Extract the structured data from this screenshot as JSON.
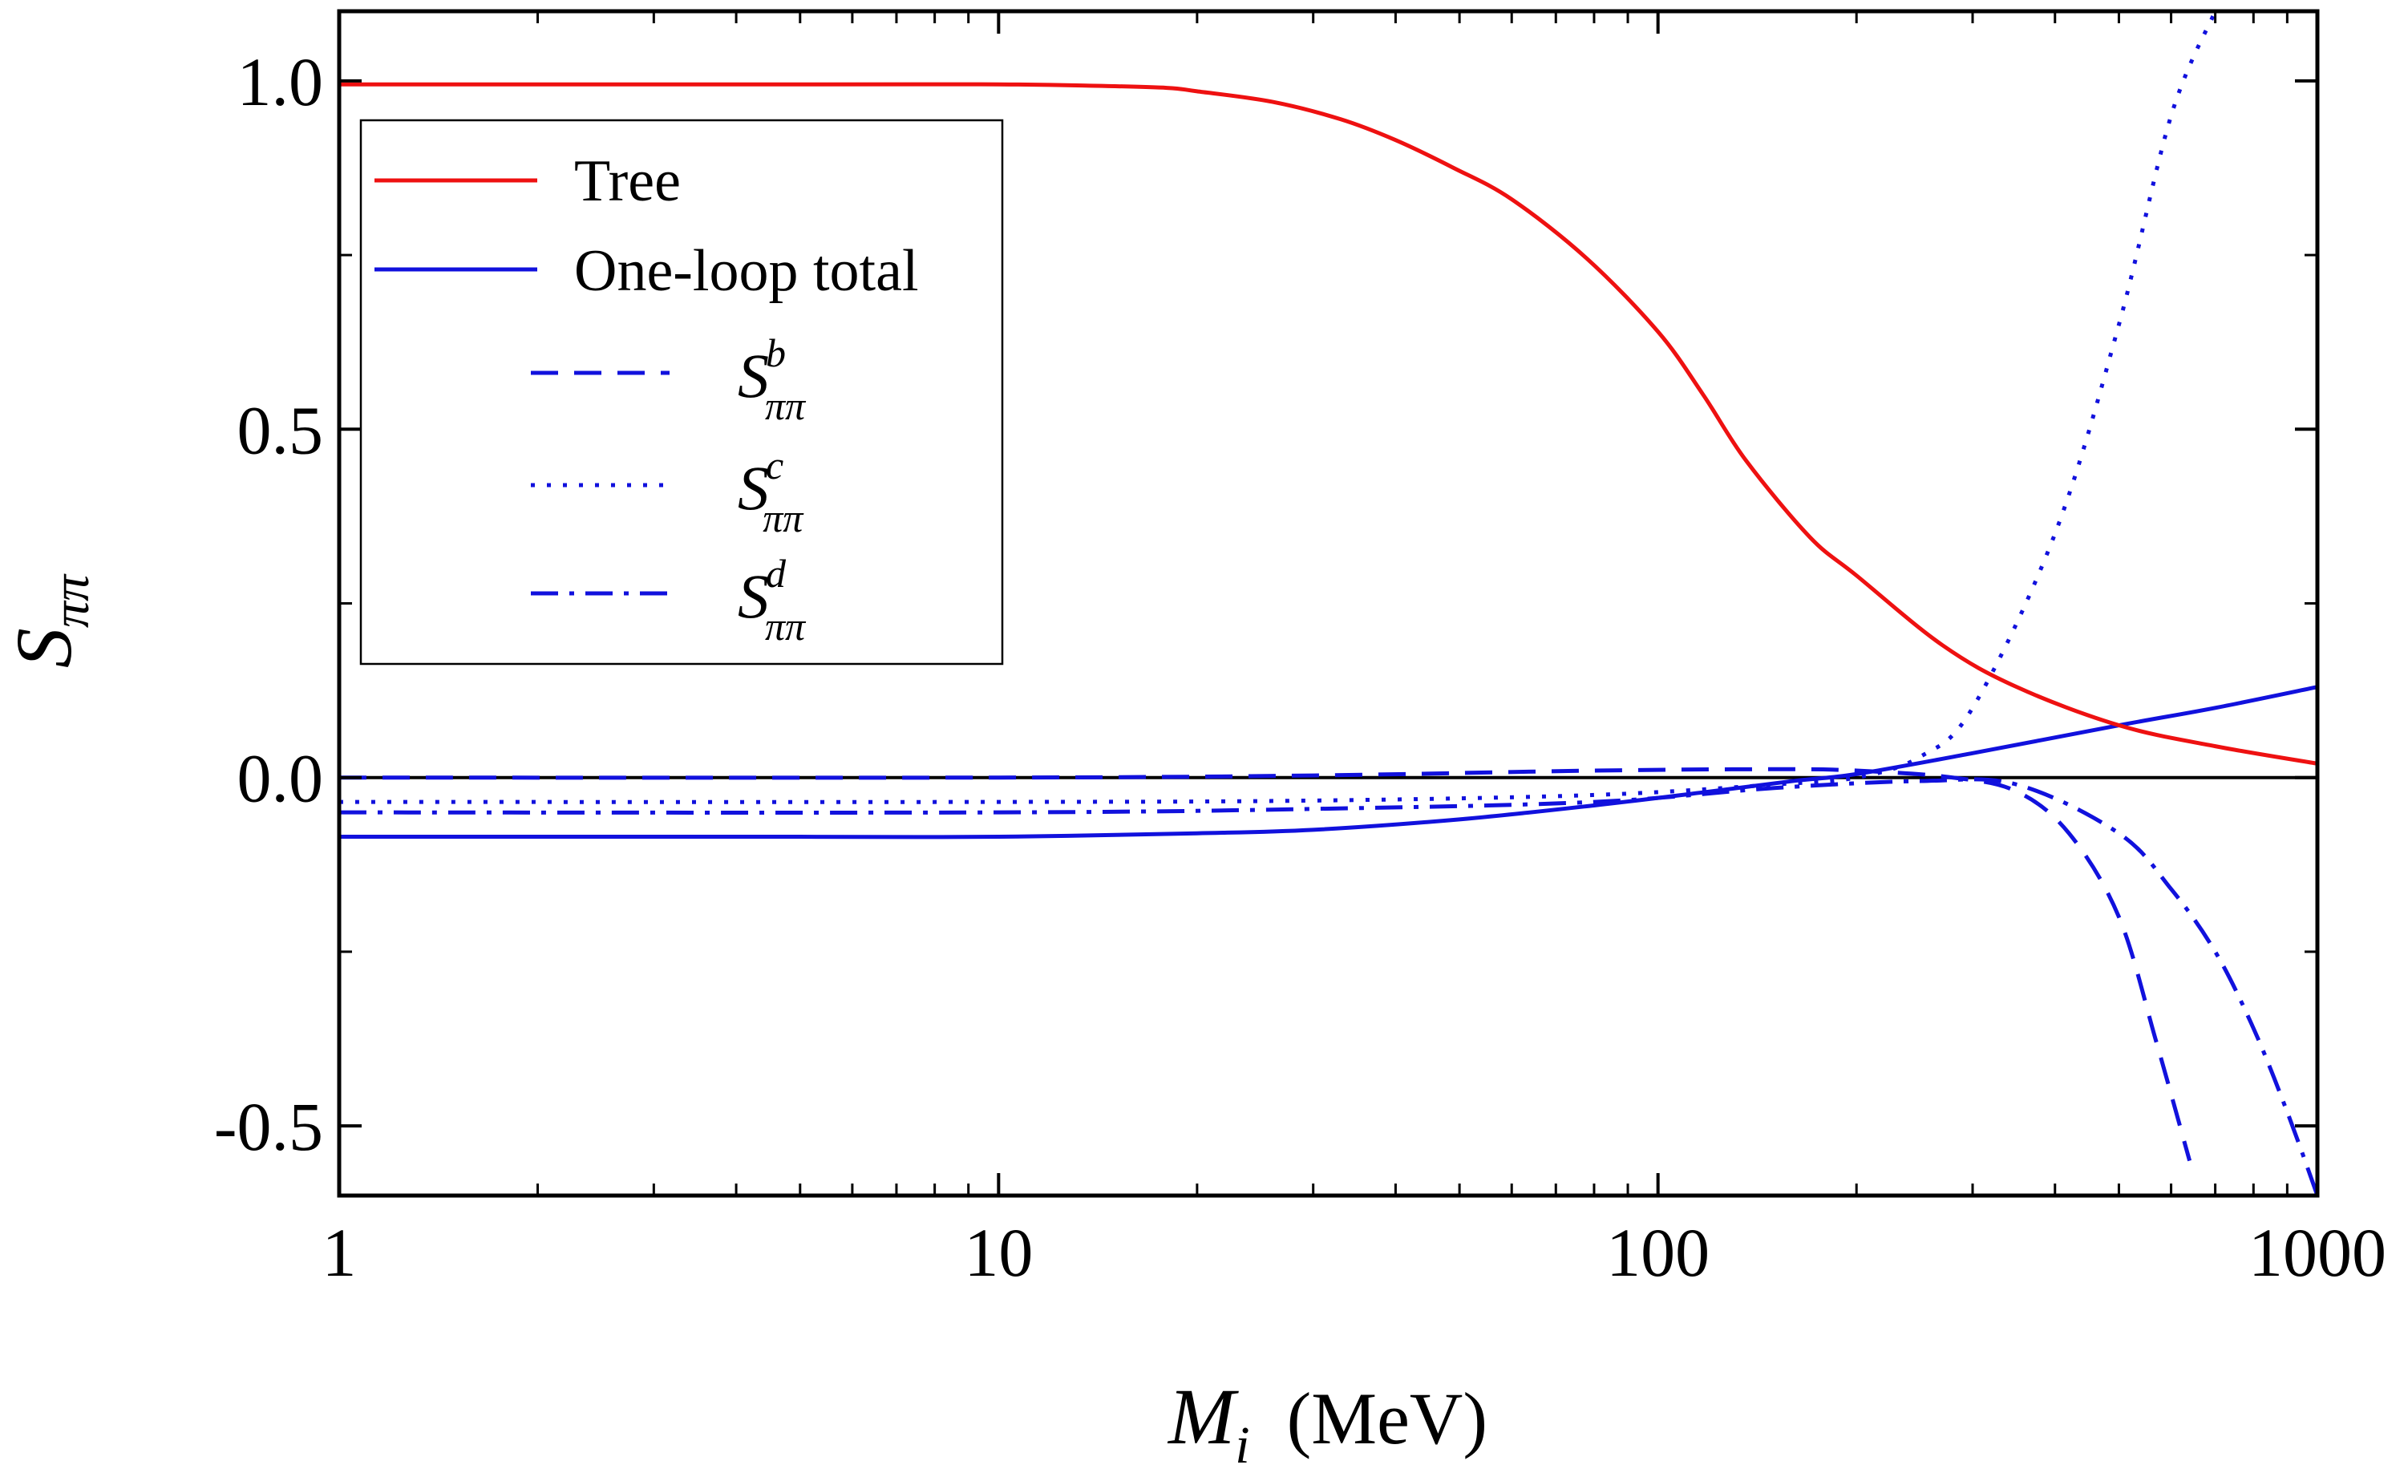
{
  "chart_data": {
    "type": "line",
    "xlabel": {
      "symbol": "M",
      "subscript": "i",
      "unit": "(MeV)"
    },
    "ylabel": {
      "symbol": "S",
      "subscript": "ππ"
    },
    "xscale": "log",
    "xlim": [
      1,
      1000
    ],
    "ylim": [
      -0.6,
      1.1
    ],
    "xticks": [
      {
        "value": 1,
        "label": "1"
      },
      {
        "value": 10,
        "label": "10"
      },
      {
        "value": 100,
        "label": "100"
      },
      {
        "value": 1000,
        "label": "1000"
      }
    ],
    "yticks": [
      {
        "value": -0.5,
        "label": "-0.5"
      },
      {
        "value": 0.0,
        "label": "0.0"
      },
      {
        "value": 0.5,
        "label": "0.5"
      },
      {
        "value": 1.0,
        "label": "1.0"
      }
    ],
    "yminor": [
      -0.25,
      0.25,
      0.75
    ],
    "zero_line": true,
    "grid": false,
    "legend_position": "top-left",
    "series": [
      {
        "key": "tree",
        "legend": {
          "text": "Tree"
        },
        "color": "#ee1111",
        "dash": "solid",
        "x": [
          1,
          5,
          10,
          14,
          18,
          20,
          26,
          33,
          40,
          49,
          60,
          78,
          100,
          117,
          136,
          170,
          200,
          270,
          350,
          500,
          700,
          1000
        ],
        "y": [
          0.995,
          0.995,
          0.995,
          0.993,
          0.99,
          0.985,
          0.97,
          0.945,
          0.915,
          0.875,
          0.83,
          0.745,
          0.64,
          0.55,
          0.455,
          0.345,
          0.29,
          0.19,
          0.13,
          0.075,
          0.045,
          0.02
        ]
      },
      {
        "key": "one_loop_total",
        "legend": {
          "text": "One-loop total"
        },
        "color": "#1111dd",
        "dash": "solid",
        "x": [
          1,
          5,
          10,
          20,
          30,
          50,
          80,
          120,
          160,
          200,
          300,
          500,
          700,
          1000
        ],
        "y": [
          -0.085,
          -0.085,
          -0.085,
          -0.08,
          -0.075,
          -0.06,
          -0.04,
          -0.02,
          -0.005,
          0.005,
          0.035,
          0.075,
          0.1,
          0.13
        ]
      },
      {
        "key": "s_b",
        "legend": {
          "symbol": "S",
          "sup": "b",
          "sub": "ππ"
        },
        "color": "#1111dd",
        "dash": "dashed",
        "x": [
          1,
          10,
          30,
          80,
          150,
          200,
          280,
          350,
          420,
          500,
          570,
          640
        ],
        "y": [
          0.0,
          0.0,
          0.003,
          0.01,
          0.012,
          0.01,
          0.0,
          -0.02,
          -0.08,
          -0.2,
          -0.38,
          -0.55
        ]
      },
      {
        "key": "s_c",
        "legend": {
          "symbol": "S",
          "sup": "c",
          "sub": "ππ"
        },
        "color": "#1111dd",
        "dash": "dotted",
        "x": [
          1,
          10,
          30,
          80,
          150,
          200,
          250,
          300,
          400,
          500,
          600,
          700
        ],
        "y": [
          -0.035,
          -0.035,
          -0.033,
          -0.025,
          -0.01,
          0.0,
          0.03,
          0.1,
          0.35,
          0.65,
          0.95,
          1.1
        ]
      },
      {
        "key": "s_d",
        "legend": {
          "symbol": "S",
          "sup": "d",
          "sub": "ππ"
        },
        "color": "#1111dd",
        "dash": "dashdot",
        "x": [
          1,
          10,
          30,
          80,
          150,
          250,
          350,
          500,
          600,
          700,
          800,
          900,
          1000
        ],
        "y": [
          -0.05,
          -0.05,
          -0.045,
          -0.035,
          -0.015,
          -0.005,
          -0.01,
          -0.08,
          -0.16,
          -0.25,
          -0.36,
          -0.48,
          -0.6
        ]
      }
    ]
  }
}
